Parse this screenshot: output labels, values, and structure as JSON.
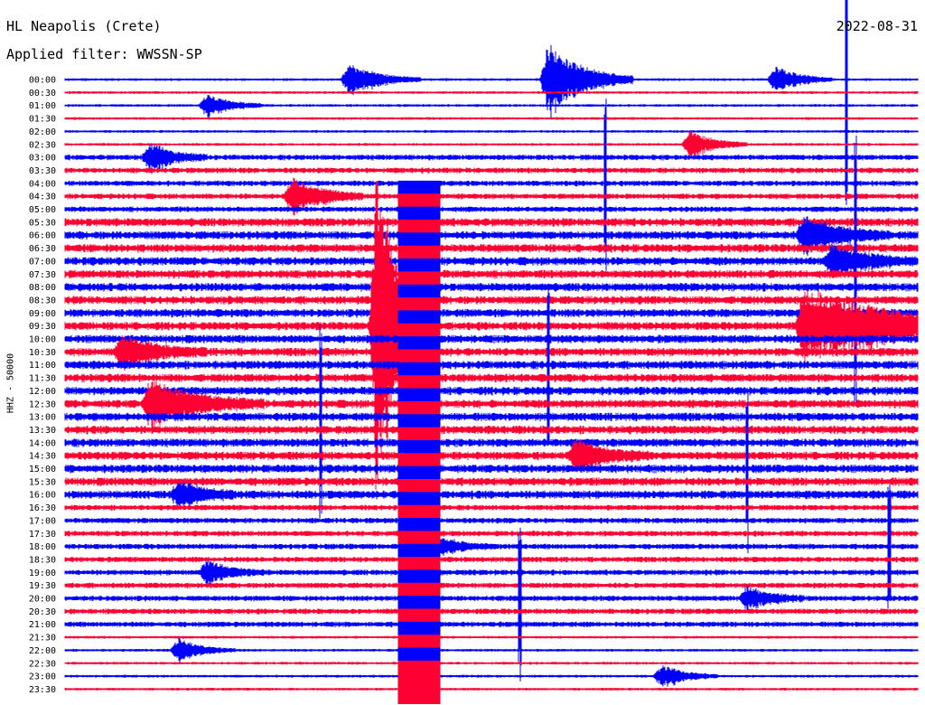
{
  "header": {
    "station": "HL Neapolis (Crete)",
    "filter": "Applied filter: WWSSN-SP",
    "date": "2022-08-31"
  },
  "chart_data": {
    "type": "line",
    "title": "HL Neapolis (Crete)",
    "subtitle": "Applied filter: WWSSN-SP",
    "date": "2022-08-31",
    "ylabel": "HHZ - 50000",
    "rows": [
      "00:00",
      "00:30",
      "01:00",
      "01:30",
      "02:00",
      "02:30",
      "03:00",
      "03:30",
      "04:00",
      "04:30",
      "05:00",
      "05:30",
      "06:00",
      "06:30",
      "07:00",
      "07:30",
      "08:00",
      "08:30",
      "09:00",
      "09:30",
      "10:00",
      "10:30",
      "11:00",
      "11:30",
      "12:00",
      "12:30",
      "13:00",
      "13:30",
      "14:00",
      "14:30",
      "15:00",
      "15:30",
      "16:00",
      "16:30",
      "17:00",
      "17:30",
      "18:00",
      "18:30",
      "19:00",
      "19:30",
      "20:00",
      "20:30",
      "21:00",
      "21:30",
      "22:00",
      "22:30",
      "23:00",
      "23:30"
    ],
    "trace_colors": [
      "#0000ff",
      "#ff0033"
    ],
    "noise_level": [
      1,
      1,
      1,
      1,
      1,
      1,
      2,
      2,
      2,
      2,
      2,
      3,
      3,
      3,
      3,
      3,
      3,
      3,
      3,
      3,
      3,
      3,
      3,
      3,
      3,
      3,
      3,
      3,
      3,
      3,
      3,
      3,
      3,
      2,
      2,
      2,
      2,
      2,
      2,
      2,
      2,
      2,
      2,
      1,
      1,
      1,
      1,
      1
    ],
    "bursts": [
      {
        "row": 0,
        "minute": 10,
        "amplitude": 3.5,
        "duration": 2.5
      },
      {
        "row": 0,
        "minute": 17,
        "amplitude": 8,
        "duration": 3
      },
      {
        "row": 0,
        "minute": 25,
        "amplitude": 3,
        "duration": 2
      },
      {
        "row": 2,
        "minute": 5,
        "amplitude": 2.5,
        "duration": 2
      },
      {
        "row": 5,
        "minute": 22,
        "amplitude": 3,
        "duration": 2
      },
      {
        "row": 6,
        "minute": 3,
        "amplitude": 3,
        "duration": 2
      },
      {
        "row": 9,
        "minute": 8,
        "amplitude": 4,
        "duration": 2.5
      },
      {
        "row": 12,
        "minute": 26,
        "amplitude": 4,
        "duration": 3
      },
      {
        "row": 14,
        "minute": 27,
        "amplitude": 3.5,
        "duration": 3
      },
      {
        "row": 19,
        "minute": 11,
        "amplitude": 40,
        "duration": 1.5
      },
      {
        "row": 19,
        "minute": 26,
        "amplitude": 8,
        "duration": 8
      },
      {
        "row": 21,
        "minute": 2,
        "amplitude": 3.5,
        "duration": 3
      },
      {
        "row": 25,
        "minute": 3,
        "amplitude": 5,
        "duration": 4
      },
      {
        "row": 29,
        "minute": 18,
        "amplitude": 3.5,
        "duration": 2.5
      },
      {
        "row": 32,
        "minute": 4,
        "amplitude": 3,
        "duration": 2
      },
      {
        "row": 36,
        "minute": 13,
        "amplitude": 2.5,
        "duration": 2
      },
      {
        "row": 38,
        "minute": 5,
        "amplitude": 2.5,
        "duration": 2
      },
      {
        "row": 40,
        "minute": 24,
        "amplitude": 2.5,
        "duration": 2
      },
      {
        "row": 44,
        "minute": 4,
        "amplitude": 2.5,
        "duration": 2
      },
      {
        "row": 46,
        "minute": 21,
        "amplitude": 2.5,
        "duration": 2
      }
    ],
    "spikes": [
      {
        "row": 0,
        "minute": 27.5,
        "amplitude": 12
      },
      {
        "row": 8,
        "minute": 19,
        "amplitude": 7
      },
      {
        "row": 14,
        "minute": 27.8,
        "amplitude": 9
      },
      {
        "row": 22,
        "minute": 17,
        "amplitude": 6
      },
      {
        "row": 26,
        "minute": 9,
        "amplitude": 7
      },
      {
        "row": 30,
        "minute": 24,
        "amplitude": 6
      },
      {
        "row": 36,
        "minute": 29,
        "amplitude": 5
      },
      {
        "row": 40,
        "minute": 16,
        "amplitude": 6
      }
    ],
    "saturated_band": {
      "from_row": 10,
      "to_row": 47,
      "minute_start": 11.7,
      "minute_end": 13.2
    }
  }
}
